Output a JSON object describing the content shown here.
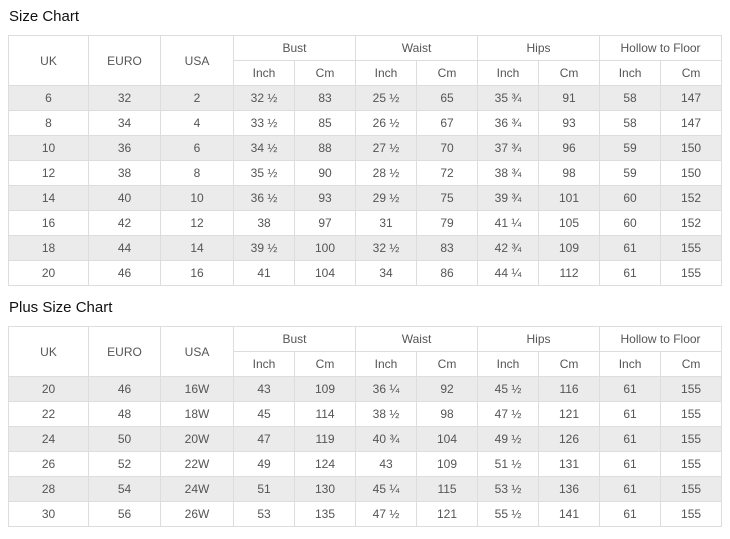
{
  "colors": {
    "row_shade": "#ebebeb",
    "border": "#dddddd",
    "cell_text": "#555555",
    "title_text": "#111111"
  },
  "headers": {
    "uk": "UK",
    "euro": "EURO",
    "usa": "USA",
    "groups": [
      "Bust",
      "Waist",
      "Hips",
      "Hollow to Floor"
    ],
    "unit_inch": "Inch",
    "unit_cm": "Cm"
  },
  "chart_data": [
    {
      "type": "table",
      "title": "Size Chart",
      "columns": [
        "UK",
        "EURO",
        "USA",
        "Bust Inch",
        "Bust Cm",
        "Waist Inch",
        "Waist Cm",
        "Hips Inch",
        "Hips Cm",
        "Hollow to Floor Inch",
        "Hollow to Floor Cm"
      ],
      "rows": [
        [
          "6",
          "32",
          "2",
          "32 ½",
          "83",
          "25 ½",
          "65",
          "35 ¾",
          "91",
          "58",
          "147"
        ],
        [
          "8",
          "34",
          "4",
          "33 ½",
          "85",
          "26 ½",
          "67",
          "36 ¾",
          "93",
          "58",
          "147"
        ],
        [
          "10",
          "36",
          "6",
          "34 ½",
          "88",
          "27 ½",
          "70",
          "37 ¾",
          "96",
          "59",
          "150"
        ],
        [
          "12",
          "38",
          "8",
          "35 ½",
          "90",
          "28 ½",
          "72",
          "38 ¾",
          "98",
          "59",
          "150"
        ],
        [
          "14",
          "40",
          "10",
          "36 ½",
          "93",
          "29 ½",
          "75",
          "39 ¾",
          "101",
          "60",
          "152"
        ],
        [
          "16",
          "42",
          "12",
          "38",
          "97",
          "31",
          "79",
          "41 ¼",
          "105",
          "60",
          "152"
        ],
        [
          "18",
          "44",
          "14",
          "39 ½",
          "100",
          "32 ½",
          "83",
          "42 ¾",
          "109",
          "61",
          "155"
        ],
        [
          "20",
          "46",
          "16",
          "41",
          "104",
          "34",
          "86",
          "44 ¼",
          "112",
          "61",
          "155"
        ]
      ]
    },
    {
      "type": "table",
      "title": "Plus Size Chart",
      "columns": [
        "UK",
        "EURO",
        "USA",
        "Bust Inch",
        "Bust Cm",
        "Waist Inch",
        "Waist Cm",
        "Hips Inch",
        "Hips Cm",
        "Hollow to Floor Inch",
        "Hollow to Floor Cm"
      ],
      "rows": [
        [
          "20",
          "46",
          "16W",
          "43",
          "109",
          "36 ¼",
          "92",
          "45 ½",
          "116",
          "61",
          "155"
        ],
        [
          "22",
          "48",
          "18W",
          "45",
          "114",
          "38 ½",
          "98",
          "47 ½",
          "121",
          "61",
          "155"
        ],
        [
          "24",
          "50",
          "20W",
          "47",
          "119",
          "40 ¾",
          "104",
          "49 ½",
          "126",
          "61",
          "155"
        ],
        [
          "26",
          "52",
          "22W",
          "49",
          "124",
          "43",
          "109",
          "51 ½",
          "131",
          "61",
          "155"
        ],
        [
          "28",
          "54",
          "24W",
          "51",
          "130",
          "45 ¼",
          "115",
          "53 ½",
          "136",
          "61",
          "155"
        ],
        [
          "30",
          "56",
          "26W",
          "53",
          "135",
          "47 ½",
          "121",
          "55 ½",
          "141",
          "61",
          "155"
        ]
      ]
    }
  ]
}
